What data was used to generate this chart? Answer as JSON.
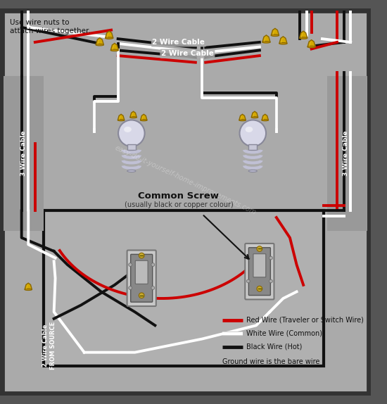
{
  "note_top": "Use wire nuts to\nattach wires together.",
  "label_2wire_top1": "2 Wire Cable",
  "label_2wire_top2": "2 Wire Cable",
  "label_3wire_left": "3 Wire Cable",
  "label_3wire_right": "3 Wire Cable",
  "label_2wire_bottom": "2 Wire Cable\nFROM SOURCE",
  "label_common": "Common Screw",
  "label_common_sub": "(usually black or copper colour)",
  "legend_red": "Red Wire (Traveler or Switch Wire)",
  "legend_white": "White Wire (Common)",
  "legend_black": "Black Wire (Hot)",
  "legend_ground": "Ground wire is the bare wire",
  "watermark": "easy-do-it-yourself-home-improvements.com",
  "red": "#cc0000",
  "white": "#ffffff",
  "black": "#111111",
  "yellow": "#d4a800",
  "gray_bg": "#aaaaaa",
  "gray_mid": "#b8b8b8",
  "gray_light": "#cccccc",
  "dark_border": "#222222",
  "outer_dark": "#555555"
}
